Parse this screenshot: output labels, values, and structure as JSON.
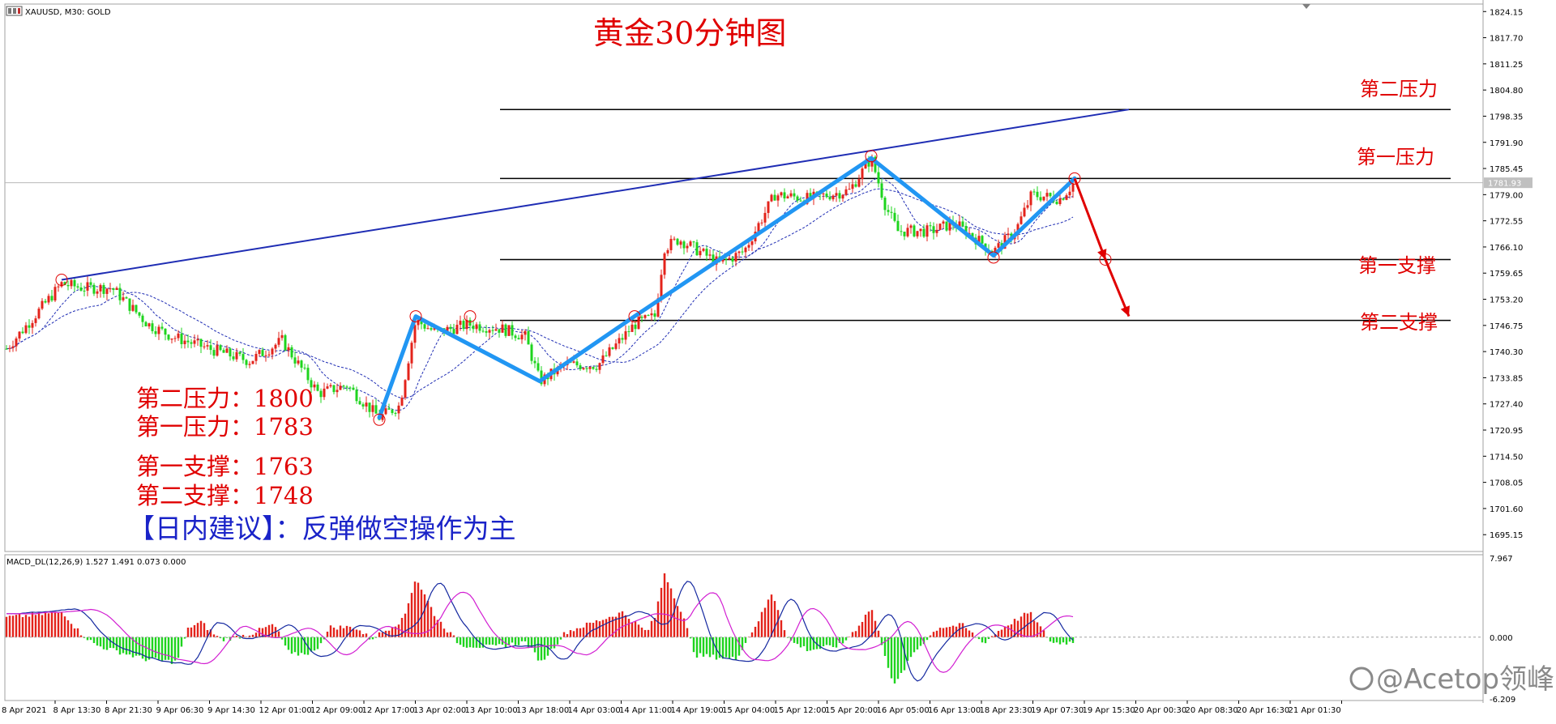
{
  "header": {
    "symbol_label": "XAUUSD, M30:  GOLD",
    "chart_title": "黄金30分钟图"
  },
  "levels": {
    "r2_label": "第二压力",
    "r1_label": "第一压力",
    "s1_label": "第一支撑",
    "s2_label": "第二支撑"
  },
  "summary": {
    "r2": "第二压力：1800",
    "r1": "第一压力：1783",
    "s1": "第一支撑：1763",
    "s2": "第二支撑：1748",
    "advice": "【日内建议】：反弹做空操作为主"
  },
  "macd": {
    "label": "MACD_DL(12,26,9) 1.527 1.491 0.073 0.000"
  },
  "watermark": "@Acetop领峰",
  "colors": {
    "bull": "#e3231b",
    "bear": "#1ed41e",
    "trend_blue": "#2196f3",
    "navy_line": "#1f2db4",
    "forecast_red": "#e00000",
    "macd_main": "#1428a0",
    "macd_signal": "#d21ed2"
  },
  "chart_data": {
    "type": "candlestick",
    "symbol": "XAUUSD",
    "timeframe": "M30",
    "current_price": 1781.93,
    "price_axis": {
      "ylim": [
        1691.0,
        1826.0
      ],
      "ticks": [
        "1824.15",
        "1817.70",
        "1811.25",
        "1804.80",
        "1798.35",
        "1791.90",
        "1785.45",
        "1779.00",
        "1772.55",
        "1766.10",
        "1759.65",
        "1753.20",
        "1746.75",
        "1740.30",
        "1733.85",
        "1727.40",
        "1720.95",
        "1714.50",
        "1708.05",
        "1701.60",
        "1695.15"
      ]
    },
    "time_axis": {
      "ticks": [
        "8 Apr 2021",
        "8 Apr 13:30",
        "8 Apr 21:30",
        "9 Apr 06:30",
        "9 Apr 14:30",
        "12 Apr 01:00",
        "12 Apr 09:00",
        "12 Apr 17:00",
        "13 Apr 02:00",
        "13 Apr 10:00",
        "13 Apr 18:00",
        "14 Apr 03:00",
        "14 Apr 11:00",
        "14 Apr 19:00",
        "15 Apr 04:00",
        "15 Apr 12:00",
        "15 Apr 20:00",
        "16 Apr 05:00",
        "16 Apr 13:00",
        "18 Apr 23:30",
        "19 Apr 07:30",
        "19 Apr 15:30",
        "20 Apr 00:30",
        "20 Apr 08:30",
        "20 Apr 16:30",
        "21 Apr 01:30"
      ]
    },
    "price_anchors": [
      {
        "t": 0,
        "p": 1741
      },
      {
        "t": 30,
        "p": 1748
      },
      {
        "t": 68,
        "p": 1757
      },
      {
        "t": 95,
        "p": 1756
      },
      {
        "t": 130,
        "p": 1756
      },
      {
        "t": 175,
        "p": 1747
      },
      {
        "t": 205,
        "p": 1744
      },
      {
        "t": 250,
        "p": 1741
      },
      {
        "t": 300,
        "p": 1738
      },
      {
        "t": 340,
        "p": 1743
      },
      {
        "t": 385,
        "p": 1730
      },
      {
        "t": 420,
        "p": 1732
      },
      {
        "t": 460,
        "p": 1724
      },
      {
        "t": 485,
        "p": 1727
      },
      {
        "t": 505,
        "p": 1748
      },
      {
        "t": 530,
        "p": 1745
      },
      {
        "t": 570,
        "p": 1747
      },
      {
        "t": 610,
        "p": 1746
      },
      {
        "t": 640,
        "p": 1744
      },
      {
        "t": 658,
        "p": 1733
      },
      {
        "t": 690,
        "p": 1737
      },
      {
        "t": 730,
        "p": 1737
      },
      {
        "t": 775,
        "p": 1747
      },
      {
        "t": 800,
        "p": 1749
      },
      {
        "t": 812,
        "p": 1766
      },
      {
        "t": 830,
        "p": 1768
      },
      {
        "t": 880,
        "p": 1762
      },
      {
        "t": 910,
        "p": 1765
      },
      {
        "t": 948,
        "p": 1779
      },
      {
        "t": 990,
        "p": 1778
      },
      {
        "t": 1040,
        "p": 1780
      },
      {
        "t": 1067,
        "p": 1788
      },
      {
        "t": 1085,
        "p": 1776
      },
      {
        "t": 1100,
        "p": 1770
      },
      {
        "t": 1140,
        "p": 1770
      },
      {
        "t": 1170,
        "p": 1772
      },
      {
        "t": 1218,
        "p": 1765
      },
      {
        "t": 1245,
        "p": 1770
      },
      {
        "t": 1265,
        "p": 1779
      },
      {
        "t": 1300,
        "p": 1778
      },
      {
        "t": 1318,
        "p": 1782
      }
    ],
    "levels": [
      {
        "name": "第二压力",
        "value": 1800
      },
      {
        "name": "第一压力",
        "value": 1783
      },
      {
        "name": "第一支撑",
        "value": 1763
      },
      {
        "name": "第二支撑",
        "value": 1748
      }
    ],
    "resistance_trendline": [
      {
        "t": 68,
        "p": 1758
      },
      {
        "t": 1385,
        "p": 1800
      }
    ],
    "swing_path": [
      {
        "t": 460,
        "p": 1724
      },
      {
        "t": 505,
        "p": 1749
      },
      {
        "t": 658,
        "p": 1733
      },
      {
        "t": 775,
        "p": 1749
      },
      {
        "t": 1067,
        "p": 1788
      },
      {
        "t": 1218,
        "p": 1764
      },
      {
        "t": 1318,
        "p": 1783
      }
    ],
    "forecast_path": [
      {
        "t": 1318,
        "p": 1783
      },
      {
        "t": 1356,
        "p": 1763
      },
      {
        "t": 1385,
        "p": 1749
      }
    ],
    "circled_points": [
      {
        "t": 68,
        "p": 1758
      },
      {
        "t": 460,
        "p": 1723.5
      },
      {
        "t": 505,
        "p": 1749
      },
      {
        "t": 572,
        "p": 1749
      },
      {
        "t": 775,
        "p": 1749
      },
      {
        "t": 1067,
        "p": 1788.5
      },
      {
        "t": 1218,
        "p": 1763.5
      },
      {
        "t": 1318,
        "p": 1783
      },
      {
        "t": 1356,
        "p": 1763
      }
    ],
    "macd": {
      "params": "12,26,9",
      "main": 1.527,
      "signal": 1.491,
      "histogram": 0.073,
      "zero": 0.0,
      "ylim": [
        -6.209,
        7.967
      ],
      "ticks": [
        "7.967",
        "0.000",
        "-6.209"
      ],
      "hist_anchors": [
        {
          "t": 0,
          "v": 2.0
        },
        {
          "t": 70,
          "v": 2.5
        },
        {
          "t": 90,
          "v": 0.5
        },
        {
          "t": 110,
          "v": -0.8
        },
        {
          "t": 170,
          "v": -2.2
        },
        {
          "t": 210,
          "v": -2.5
        },
        {
          "t": 225,
          "v": 1.0
        },
        {
          "t": 240,
          "v": 1.5
        },
        {
          "t": 265,
          "v": -0.3
        },
        {
          "t": 300,
          "v": 0.3
        },
        {
          "t": 330,
          "v": 1.3
        },
        {
          "t": 350,
          "v": -1.8
        },
        {
          "t": 380,
          "v": -1.5
        },
        {
          "t": 400,
          "v": 1.0
        },
        {
          "t": 430,
          "v": 1.0
        },
        {
          "t": 450,
          "v": -0.2
        },
        {
          "t": 490,
          "v": 1.8
        },
        {
          "t": 505,
          "v": 6.0
        },
        {
          "t": 530,
          "v": 2.0
        },
        {
          "t": 560,
          "v": -0.8
        },
        {
          "t": 600,
          "v": -1.0
        },
        {
          "t": 640,
          "v": -0.5
        },
        {
          "t": 660,
          "v": -2.5
        },
        {
          "t": 690,
          "v": 0.5
        },
        {
          "t": 760,
          "v": 2.5
        },
        {
          "t": 790,
          "v": 0.5
        },
        {
          "t": 800,
          "v": 2.0
        },
        {
          "t": 812,
          "v": 6.5
        },
        {
          "t": 835,
          "v": 2.0
        },
        {
          "t": 850,
          "v": -1.8
        },
        {
          "t": 900,
          "v": -2.2
        },
        {
          "t": 930,
          "v": 2.0
        },
        {
          "t": 945,
          "v": 4.5
        },
        {
          "t": 965,
          "v": -0.3
        },
        {
          "t": 990,
          "v": -1.3
        },
        {
          "t": 1030,
          "v": -0.8
        },
        {
          "t": 1050,
          "v": 1.0
        },
        {
          "t": 1067,
          "v": 3.0
        },
        {
          "t": 1085,
          "v": -2.0
        },
        {
          "t": 1095,
          "v": -5.0
        },
        {
          "t": 1120,
          "v": -1.5
        },
        {
          "t": 1150,
          "v": 1.0
        },
        {
          "t": 1180,
          "v": 1.2
        },
        {
          "t": 1205,
          "v": -0.6
        },
        {
          "t": 1230,
          "v": 1.0
        },
        {
          "t": 1262,
          "v": 2.5
        },
        {
          "t": 1290,
          "v": -0.6
        },
        {
          "t": 1318,
          "v": -0.5
        }
      ]
    }
  }
}
